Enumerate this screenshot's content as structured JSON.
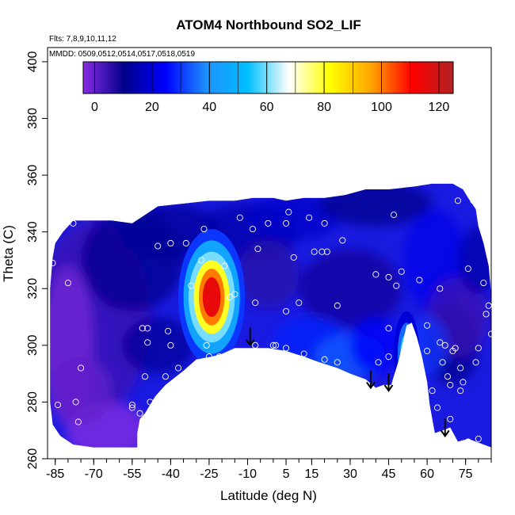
{
  "chart_data": {
    "type": "heatmap",
    "title": "ATOM4 Northbound SO2_LIF",
    "subtitle_flights": "Flts: 7,8,9,10,11,12",
    "subtitle_dates": "MMDD: 0509,0512,0514,0517,0518,0519",
    "xlabel": "Latitude (deg N)",
    "ylabel": "Theta (C)",
    "xlim": [
      -88,
      85
    ],
    "ylim": [
      260,
      405
    ],
    "x_ticks": [
      -85,
      -70,
      -55,
      -40,
      -25,
      -10,
      5,
      15,
      30,
      45,
      60,
      75
    ],
    "y_ticks": [
      260,
      280,
      300,
      320,
      340,
      360,
      380,
      400
    ],
    "colorbar": {
      "range": [
        -4,
        125
      ],
      "ticks": [
        0,
        20,
        40,
        60,
        80,
        100,
        120
      ],
      "colors": [
        "#8a2be2",
        "#00008b",
        "#0000ff",
        "#1e90ff",
        "#00bfff",
        "#ffffff",
        "#ffff00",
        "#ffa500",
        "#ff0000",
        "#b22222"
      ]
    },
    "hot_spots": [
      {
        "lat": -24,
        "theta": 317,
        "value": 115
      },
      {
        "lat": 52,
        "theta": 297,
        "value": 55
      }
    ],
    "surface_arrows": [
      {
        "lat": -9,
        "theta": 300
      },
      {
        "lat": 38,
        "theta": 285
      },
      {
        "lat": 45,
        "theta": 284
      },
      {
        "lat": 67,
        "theta": 268
      }
    ],
    "sample_points": [
      [
        -86,
        329
      ],
      [
        -80,
        322
      ],
      [
        -78,
        343
      ],
      [
        -84,
        279
      ],
      [
        -77,
        280
      ],
      [
        -76,
        273
      ],
      [
        -75,
        292
      ],
      [
        -55,
        278
      ],
      [
        -55,
        279
      ],
      [
        -51,
        306
      ],
      [
        -52,
        276
      ],
      [
        -48,
        280
      ],
      [
        -49,
        306
      ],
      [
        -49,
        301
      ],
      [
        -50,
        289
      ],
      [
        -45,
        335
      ],
      [
        -40,
        336
      ],
      [
        -41,
        305
      ],
      [
        -40,
        300
      ],
      [
        -42,
        289
      ],
      [
        -37,
        292
      ],
      [
        -34,
        336
      ],
      [
        -32,
        321
      ],
      [
        -28,
        330
      ],
      [
        -27,
        341
      ],
      [
        -26,
        300
      ],
      [
        -25,
        296
      ],
      [
        -21,
        296
      ],
      [
        -19,
        328
      ],
      [
        -17,
        317
      ],
      [
        -15,
        318
      ],
      [
        -13,
        345
      ],
      [
        -8,
        341
      ],
      [
        -7,
        315
      ],
      [
        -7,
        300
      ],
      [
        -6,
        334
      ],
      [
        -2,
        343
      ],
      [
        0,
        300
      ],
      [
        1,
        300
      ],
      [
        5,
        343
      ],
      [
        6,
        347
      ],
      [
        5,
        312
      ],
      [
        5,
        299
      ],
      [
        8,
        331
      ],
      [
        10,
        315
      ],
      [
        12,
        297
      ],
      [
        14,
        345
      ],
      [
        16,
        333
      ],
      [
        19,
        333
      ],
      [
        20,
        343
      ],
      [
        20,
        295
      ],
      [
        21,
        333
      ],
      [
        25,
        314
      ],
      [
        27,
        337
      ],
      [
        25,
        294
      ],
      [
        40,
        325
      ],
      [
        41,
        294
      ],
      [
        45,
        296
      ],
      [
        45,
        324
      ],
      [
        45,
        306
      ],
      [
        47,
        346
      ],
      [
        48,
        321
      ],
      [
        50,
        326
      ],
      [
        52,
        297
      ],
      [
        55,
        286
      ],
      [
        57,
        323
      ],
      [
        60,
        307
      ],
      [
        60,
        298
      ],
      [
        62,
        284
      ],
      [
        64,
        278
      ],
      [
        65,
        320
      ],
      [
        65,
        301
      ],
      [
        66,
        294
      ],
      [
        67,
        300
      ],
      [
        68,
        289
      ],
      [
        69,
        274
      ],
      [
        70,
        298
      ],
      [
        69,
        286
      ],
      [
        71,
        299
      ],
      [
        72,
        351
      ],
      [
        73,
        284
      ],
      [
        74,
        287
      ],
      [
        76,
        327
      ],
      [
        78,
        351
      ],
      [
        79,
        294
      ],
      [
        80,
        299
      ],
      [
        82,
        322
      ],
      [
        83,
        311
      ],
      [
        84,
        314
      ],
      [
        85,
        304
      ],
      [
        80,
        267
      ],
      [
        76,
        266
      ],
      [
        73,
        292
      ]
    ]
  }
}
